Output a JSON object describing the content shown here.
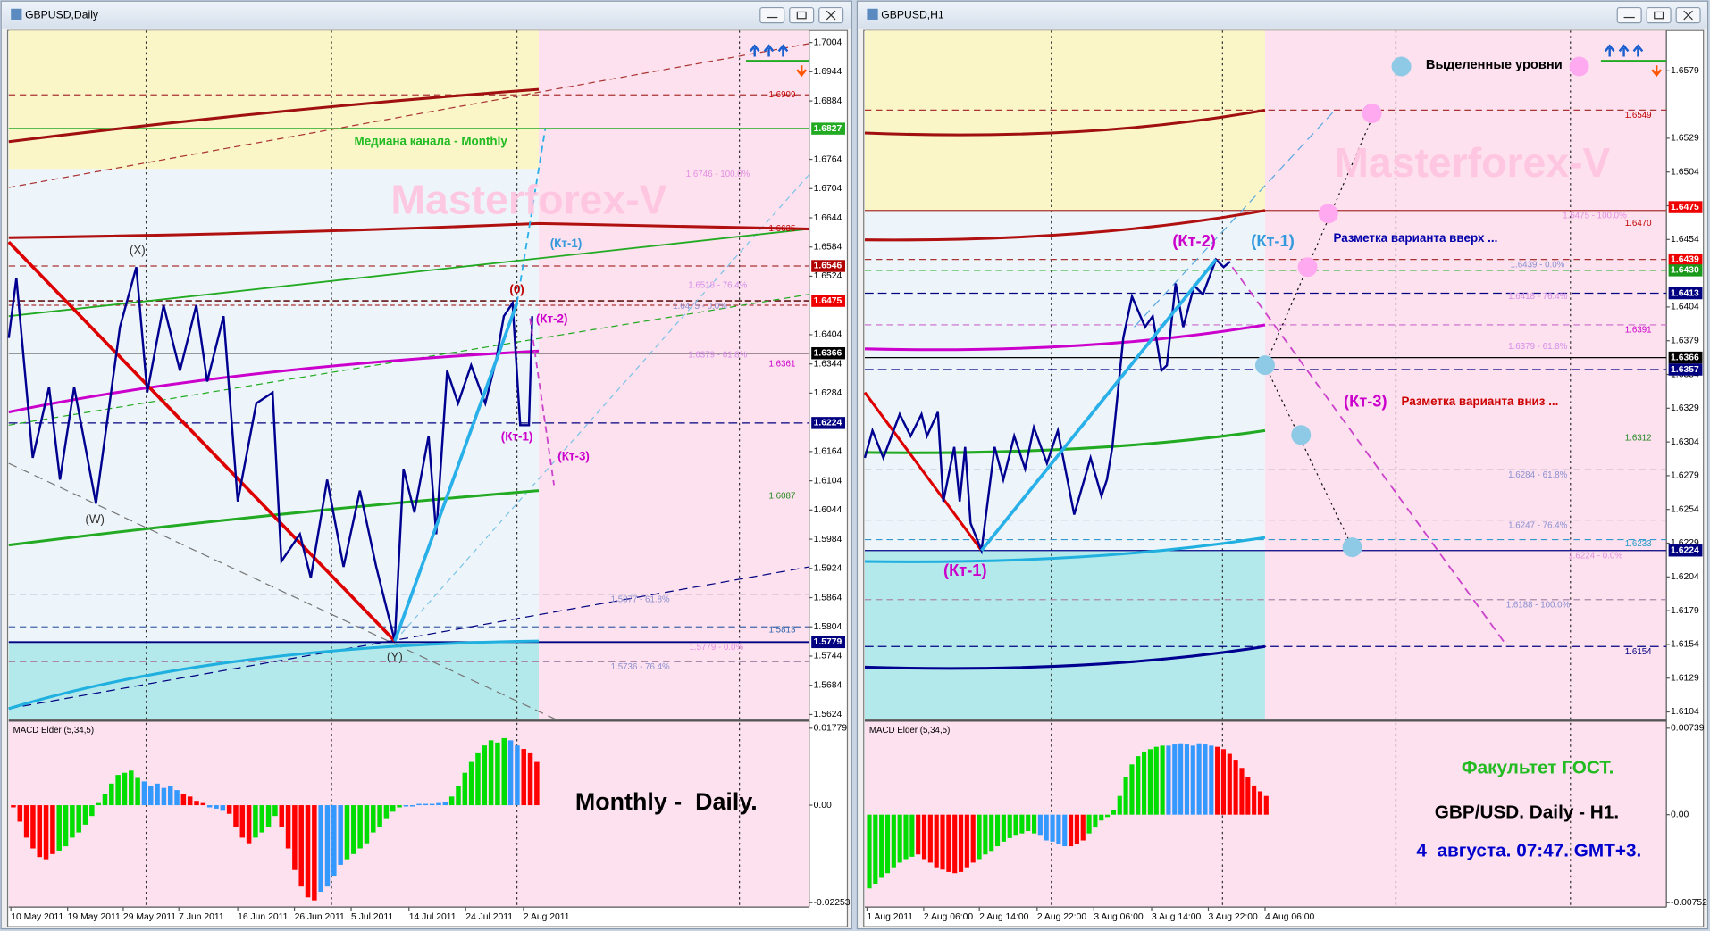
{
  "windows": [
    {
      "title": "GBPUSD,Daily",
      "price_ticks": [
        "1.7004",
        "1.6944",
        "1.6884",
        "1.6764",
        "1.6704",
        "1.6644",
        "1.6584",
        "1.6524",
        "1.6404",
        "1.6344",
        "1.6284",
        "1.6164",
        "1.6104",
        "1.6044",
        "1.5984",
        "1.5924",
        "1.5864",
        "1.5804",
        "1.5744",
        "1.5684",
        "1.5624"
      ],
      "price_boxes": [
        "1.6827",
        "1.6546",
        "1.6475",
        "1.6366",
        "1.6224",
        "1.5779"
      ],
      "levels": [
        "1.6909",
        "1.6746 - 100.0%",
        "1.6635",
        "1.6518 - 76.4%",
        "1.6475 - 0.0%",
        "1.6361",
        "1.6379 - 61.8%",
        "1.6087",
        "1.5877 - 61.8%",
        "1.5813",
        "1.5779 - 0.0%",
        "1.5736 - 76.4%"
      ],
      "notes": [
        "(X)",
        "(W)",
        "(Y)",
        "(0)",
        "(Кт-1)",
        "(Кт-2)",
        "(Кт-1)",
        "(Кт-3)",
        "Медиана канала - Monthly",
        "Monthly -  Daily."
      ],
      "watermark": "Masterforex-V",
      "times": [
        "10 May 2011",
        "19 May 2011",
        "29 May 2011",
        "7 Jun 2011",
        "16 Jun 2011",
        "26 Jun 2011",
        "5 Jul 2011",
        "14 Jul 2011",
        "24 Jul 2011",
        "2 Aug 2011"
      ],
      "macd": {
        "label": "MACD Elder (5,34,5)",
        "yticks": [
          0.01779,
          {
            "value": 0,
            "label": "0.00"
          },
          -0.02253
        ],
        "values": [
          -0.0005,
          -0.0038,
          -0.0075,
          -0.01,
          -0.012,
          -0.0125,
          -0.0113,
          -0.0105,
          -0.0095,
          -0.0075,
          -0.0063,
          -0.0045,
          -0.0025,
          0.0005,
          0.0025,
          0.005,
          0.007,
          0.0075,
          0.008,
          0.0063,
          0.0055,
          0.0045,
          0.005,
          0.004,
          0.0045,
          0.0035,
          0.0025,
          0.002,
          0.001,
          0.0005,
          -0.0005,
          -0.0008,
          -0.0013,
          -0.002,
          -0.005,
          -0.0075,
          -0.0088,
          -0.0075,
          -0.0063,
          -0.005,
          -0.0025,
          -0.005,
          -0.01,
          -0.015,
          -0.0188,
          -0.0213,
          -0.022,
          -0.02,
          -0.0188,
          -0.0163,
          -0.0138,
          -0.0125,
          -0.0113,
          -0.01,
          -0.0088,
          -0.0063,
          -0.005,
          -0.003,
          -0.0015,
          -0.0005,
          -0.0003,
          -0.0003,
          0.0003,
          0.0003,
          0.0003,
          0.0005,
          0.0008,
          0.002,
          0.0045,
          0.0075,
          0.01,
          0.012,
          0.0138,
          0.015,
          0.0145,
          0.0155,
          0.015,
          0.0138,
          0.013,
          0.012,
          0.01
        ],
        "colors": [
          "#f00",
          "#f00",
          "#f00",
          "#f00",
          "#f00",
          "#f00",
          "#f00",
          "#0d0",
          "#0d0",
          "#0d0",
          "#0d0",
          "#0d0",
          "#0d0",
          "#0d0",
          "#0d0",
          "#0d0",
          "#0d0",
          "#0d0",
          "#0d0",
          "#0d0",
          "#39f",
          "#39f",
          "#39f",
          "#39f",
          "#39f",
          "#39f",
          "#f00",
          "#f00",
          "#f00",
          "#f00",
          "#39f",
          "#39f",
          "#39f",
          "#f00",
          "#f00",
          "#f00",
          "#f00",
          "#0d0",
          "#0d0",
          "#0d0",
          "#0d0",
          "#f00",
          "#f00",
          "#f00",
          "#f00",
          "#f00",
          "#f00",
          "#39f",
          "#39f",
          "#39f",
          "#39f",
          "#0d0",
          "#0d0",
          "#0d0",
          "#0d0",
          "#0d0",
          "#0d0",
          "#0d0",
          "#0d0",
          "#0d0",
          "#39f",
          "#39f",
          "#39f",
          "#39f",
          "#39f",
          "#39f",
          "#39f",
          "#0d0",
          "#0d0",
          "#0d0",
          "#0d0",
          "#0d0",
          "#0d0",
          "#0d0",
          "#0d0",
          "#0d0",
          "#39f",
          "#39f",
          "#f00",
          "#f00",
          "#f00"
        ]
      }
    },
    {
      "title": "GBPUSD,H1",
      "price_ticks": [
        "1.6579",
        "1.6529",
        "1.6504",
        "1.6479",
        "1.6454",
        "1.6404",
        "1.6379",
        "1.6354",
        "1.6329",
        "1.6304",
        "1.6279",
        "1.6254",
        "1.6229",
        "1.6204",
        "1.6179",
        "1.6154",
        "1.6129",
        "1.6104"
      ],
      "price_boxes": [
        "1.6475",
        "1.6439",
        "1.6430",
        "1.6413",
        "1.6366",
        "1.6357",
        "1.6224"
      ],
      "levels": [
        "1.6549",
        "1.6475 - 100.0%",
        "1.6470",
        "1.6439 - 0.0%",
        "1.6418 - 76.4%",
        "1.6391",
        "1.6379 - 61.8%",
        "1.6312",
        "1.6284 - 61.8%",
        "1.6247 - 76.4%",
        "1.6233",
        "1.6224 - 0.0%",
        "1.6188 - 100.0%",
        "1.6154"
      ],
      "notes": [
        "Выделенные уровни",
        "(Кт-2)",
        "(Кт-1)",
        "Разметка варианта вверх ...",
        "(Кт-3)",
        "Разметка варианта вниз ...",
        "(Кт-1)",
        "Факультет ГОСТ.",
        "GBP/USD. Daily - H1.",
        "4  августа. 07:47. GMT+3."
      ],
      "watermark": "Masterforex-V",
      "times": [
        "1 Aug 2011",
        "2 Aug 06:00",
        "2 Aug 14:00",
        "2 Aug 22:00",
        "3 Aug 06:00",
        "3 Aug 14:00",
        "3 Aug 22:00",
        "4 Aug 06:00"
      ],
      "macd": {
        "label": "MACD Elder (5,34,5)",
        "yticks": [
          0.00739,
          {
            "value": 0,
            "label": "0.00"
          },
          -0.00752
        ],
        "values": [
          -0.0063,
          -0.0059,
          -0.0054,
          -0.005,
          -0.0045,
          -0.0041,
          -0.0038,
          -0.0036,
          -0.0034,
          -0.0038,
          -0.0041,
          -0.0045,
          -0.0047,
          -0.0049,
          -0.005,
          -0.0049,
          -0.0045,
          -0.0041,
          -0.0038,
          -0.0034,
          -0.0031,
          -0.0027,
          -0.0023,
          -0.002,
          -0.0018,
          -0.0016,
          -0.0014,
          -0.0016,
          -0.0018,
          -0.0022,
          -0.0023,
          -0.0025,
          -0.0027,
          -0.0027,
          -0.0025,
          -0.0022,
          -0.0016,
          -0.0011,
          -0.0005,
          -0.0002,
          0.0004,
          0.0016,
          0.0032,
          0.0043,
          0.005,
          0.0054,
          0.0056,
          0.0058,
          0.0059,
          0.0059,
          0.006,
          0.0061,
          0.006,
          0.0059,
          0.0061,
          0.006,
          0.0059,
          0.0058,
          0.0056,
          0.0052,
          0.0047,
          0.004,
          0.0032,
          0.0025,
          0.002,
          0.0016
        ],
        "colors": [
          "#0d0",
          "#0d0",
          "#0d0",
          "#0d0",
          "#0d0",
          "#0d0",
          "#0d0",
          "#0d0",
          "#f00",
          "#f00",
          "#f00",
          "#f00",
          "#f00",
          "#f00",
          "#f00",
          "#f00",
          "#f00",
          "#f00",
          "#0d0",
          "#0d0",
          "#0d0",
          "#0d0",
          "#0d0",
          "#0d0",
          "#0d0",
          "#0d0",
          "#0d0",
          "#0d0",
          "#39f",
          "#39f",
          "#39f",
          "#39f",
          "#39f",
          "#f00",
          "#f00",
          "#f00",
          "#0d0",
          "#0d0",
          "#0d0",
          "#0d0",
          "#0d0",
          "#0d0",
          "#0d0",
          "#0d0",
          "#0d0",
          "#0d0",
          "#0d0",
          "#0d0",
          "#0d0",
          "#39f",
          "#39f",
          "#39f",
          "#39f",
          "#39f",
          "#39f",
          "#39f",
          "#39f",
          "#f00",
          "#f00",
          "#f00",
          "#f00",
          "#f00",
          "#f00",
          "#f00",
          "#f00",
          "#f00"
        ]
      }
    }
  ]
}
